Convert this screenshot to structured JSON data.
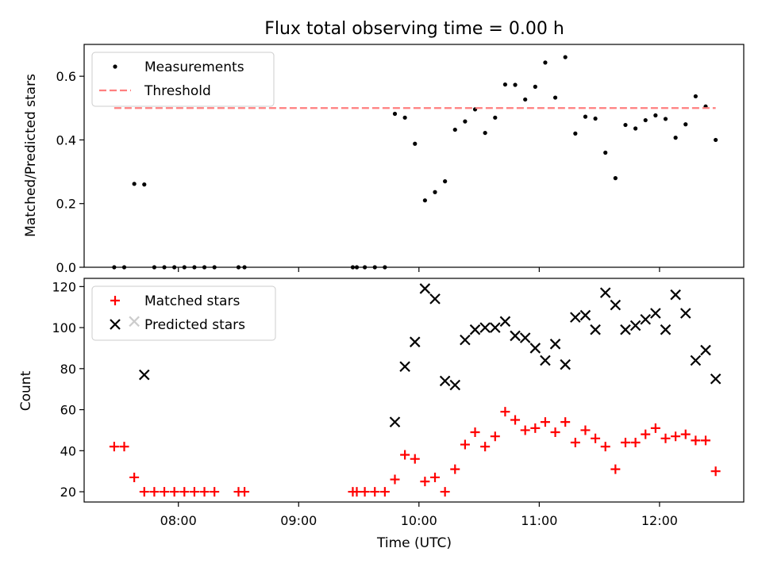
{
  "chart_data": [
    {
      "type": "scatter",
      "title": "Flux total observing time = 0.00 h",
      "xlabel": "",
      "ylabel": "Matched/Predicted stars",
      "ylim": [
        0,
        0.7
      ],
      "yticks": [
        "0.0",
        "0.2",
        "0.4",
        "0.6"
      ],
      "legend": "top-left",
      "series": [
        {
          "name": "Measurements",
          "color": "#000000",
          "marker": "dot",
          "points": [
            [
              "07:28",
              0.0
            ],
            [
              "07:33",
              0.0
            ],
            [
              "07:38",
              0.262
            ],
            [
              "07:43",
              0.26
            ],
            [
              "07:48",
              0.0
            ],
            [
              "07:53",
              0.0
            ],
            [
              "07:58",
              0.0
            ],
            [
              "08:03",
              0.0
            ],
            [
              "08:08",
              0.0
            ],
            [
              "08:13",
              0.0
            ],
            [
              "08:18",
              0.0
            ],
            [
              "08:30",
              0.0
            ],
            [
              "08:33",
              0.0
            ],
            [
              "09:27",
              0.0
            ],
            [
              "09:29",
              0.0
            ],
            [
              "09:33",
              0.0
            ],
            [
              "09:38",
              0.0
            ],
            [
              "09:43",
              0.0
            ],
            [
              "09:48",
              0.482
            ],
            [
              "09:53",
              0.47
            ],
            [
              "09:58",
              0.388
            ],
            [
              "10:03",
              0.21
            ],
            [
              "10:08",
              0.236
            ],
            [
              "10:13",
              0.27
            ],
            [
              "10:18",
              0.432
            ],
            [
              "10:23",
              0.458
            ],
            [
              "10:28",
              0.496
            ],
            [
              "10:33",
              0.422
            ],
            [
              "10:38",
              0.47
            ],
            [
              "10:43",
              0.574
            ],
            [
              "10:48",
              0.573
            ],
            [
              "10:53",
              0.527
            ],
            [
              "10:58",
              0.567
            ],
            [
              "11:03",
              0.643
            ],
            [
              "11:08",
              0.533
            ],
            [
              "11:13",
              0.66
            ],
            [
              "11:18",
              0.42
            ],
            [
              "11:23",
              0.473
            ],
            [
              "11:28",
              0.467
            ],
            [
              "11:33",
              0.36
            ],
            [
              "11:38",
              0.28
            ],
            [
              "11:43",
              0.447
            ],
            [
              "11:48",
              0.436
            ],
            [
              "11:53",
              0.462
            ],
            [
              "11:58",
              0.477
            ],
            [
              "12:03",
              0.466
            ],
            [
              "12:08",
              0.407
            ],
            [
              "12:13",
              0.449
            ],
            [
              "12:18",
              0.537
            ],
            [
              "12:23",
              0.505
            ],
            [
              "12:28",
              0.4
            ]
          ]
        },
        {
          "name": "Threshold",
          "color": "#ff7f7f",
          "line": "dashed",
          "points": [
            [
              "07:28",
              0.5
            ],
            [
              "12:28",
              0.5
            ]
          ]
        }
      ]
    },
    {
      "type": "scatter",
      "title": "",
      "xlabel": "Time (UTC)",
      "ylabel": "Count",
      "ylim": [
        15,
        124
      ],
      "yticks": [
        "20",
        "40",
        "60",
        "80",
        "100",
        "120"
      ],
      "xlim": [
        "07:13",
        "12:42"
      ],
      "xticks": [
        "08:00",
        "09:00",
        "10:00",
        "11:00",
        "12:00"
      ],
      "legend": "top-left",
      "series": [
        {
          "name": "Matched stars",
          "color": "#ff0000",
          "marker": "plus",
          "points": [
            [
              "07:28",
              42
            ],
            [
              "07:33",
              42
            ],
            [
              "07:38",
              27
            ],
            [
              "07:43",
              20
            ],
            [
              "07:48",
              20
            ],
            [
              "07:53",
              20
            ],
            [
              "07:58",
              20
            ],
            [
              "08:03",
              20
            ],
            [
              "08:08",
              20
            ],
            [
              "08:13",
              20
            ],
            [
              "08:18",
              20
            ],
            [
              "08:30",
              20
            ],
            [
              "08:33",
              20
            ],
            [
              "09:27",
              20
            ],
            [
              "09:29",
              20
            ],
            [
              "09:33",
              20
            ],
            [
              "09:38",
              20
            ],
            [
              "09:43",
              20
            ],
            [
              "09:48",
              26
            ],
            [
              "09:53",
              38
            ],
            [
              "09:58",
              36
            ],
            [
              "10:03",
              25
            ],
            [
              "10:08",
              27
            ],
            [
              "10:13",
              20
            ],
            [
              "10:18",
              31
            ],
            [
              "10:23",
              43
            ],
            [
              "10:28",
              49
            ],
            [
              "10:33",
              42
            ],
            [
              "10:38",
              47
            ],
            [
              "10:43",
              59
            ],
            [
              "10:48",
              55
            ],
            [
              "10:53",
              50
            ],
            [
              "10:58",
              51
            ],
            [
              "11:03",
              54
            ],
            [
              "11:08",
              49
            ],
            [
              "11:13",
              54
            ],
            [
              "11:18",
              44
            ],
            [
              "11:23",
              50
            ],
            [
              "11:28",
              46
            ],
            [
              "11:33",
              42
            ],
            [
              "11:38",
              31
            ],
            [
              "11:43",
              44
            ],
            [
              "11:48",
              44
            ],
            [
              "11:53",
              48
            ],
            [
              "11:58",
              51
            ],
            [
              "12:03",
              46
            ],
            [
              "12:08",
              47
            ],
            [
              "12:13",
              48
            ],
            [
              "12:18",
              45
            ],
            [
              "12:23",
              45
            ],
            [
              "12:28",
              30
            ]
          ]
        },
        {
          "name": "Predicted stars",
          "color": "#000000",
          "marker": "x",
          "points": [
            [
              "07:38",
              103
            ],
            [
              "07:43",
              77
            ],
            [
              "09:48",
              54
            ],
            [
              "09:53",
              81
            ],
            [
              "09:58",
              93
            ],
            [
              "10:03",
              119
            ],
            [
              "10:08",
              114
            ],
            [
              "10:13",
              74
            ],
            [
              "10:18",
              72
            ],
            [
              "10:23",
              94
            ],
            [
              "10:28",
              99
            ],
            [
              "10:33",
              100
            ],
            [
              "10:38",
              100
            ],
            [
              "10:43",
              103
            ],
            [
              "10:48",
              96
            ],
            [
              "10:53",
              95
            ],
            [
              "10:58",
              90
            ],
            [
              "11:03",
              84
            ],
            [
              "11:08",
              92
            ],
            [
              "11:13",
              82
            ],
            [
              "11:18",
              105
            ],
            [
              "11:23",
              106
            ],
            [
              "11:28",
              99
            ],
            [
              "11:33",
              117
            ],
            [
              "11:38",
              111
            ],
            [
              "11:43",
              99
            ],
            [
              "11:48",
              101
            ],
            [
              "11:53",
              104
            ],
            [
              "11:58",
              107
            ],
            [
              "12:03",
              99
            ],
            [
              "12:08",
              116
            ],
            [
              "12:13",
              107
            ],
            [
              "12:18",
              84
            ],
            [
              "12:23",
              89
            ],
            [
              "12:28",
              75
            ]
          ]
        }
      ]
    }
  ]
}
